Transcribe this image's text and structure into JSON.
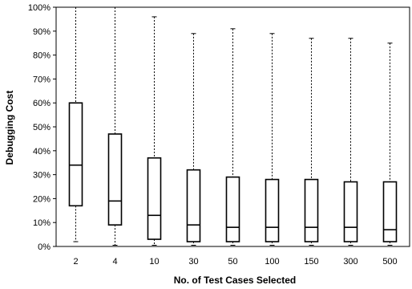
{
  "chart_data": {
    "type": "box",
    "title": "",
    "xlabel": "No. of Test Cases Selected",
    "ylabel": "Debugging Cost",
    "categories": [
      "2",
      "4",
      "10",
      "30",
      "50",
      "100",
      "150",
      "300",
      "500"
    ],
    "ylim": [
      0,
      100
    ],
    "ytick_labels": [
      "0%",
      "10%",
      "20%",
      "30%",
      "40%",
      "50%",
      "60%",
      "70%",
      "80%",
      "90%",
      "100%"
    ],
    "grid": false,
    "boxes": [
      {
        "category": "2",
        "min": 2,
        "q1": 17,
        "median": 34,
        "q3": 60,
        "max": 100
      },
      {
        "category": "4",
        "min": 0.5,
        "q1": 9,
        "median": 19,
        "q3": 47,
        "max": 100
      },
      {
        "category": "10",
        "min": 0.5,
        "q1": 3,
        "median": 13,
        "q3": 37,
        "max": 96
      },
      {
        "category": "30",
        "min": 0.5,
        "q1": 2,
        "median": 9,
        "q3": 32,
        "max": 89
      },
      {
        "category": "50",
        "min": 0.5,
        "q1": 2,
        "median": 8,
        "q3": 29,
        "max": 91
      },
      {
        "category": "100",
        "min": 0.5,
        "q1": 2,
        "median": 8,
        "q3": 28,
        "max": 89
      },
      {
        "category": "150",
        "min": 0.5,
        "q1": 2,
        "median": 8,
        "q3": 28,
        "max": 87
      },
      {
        "category": "300",
        "min": 0.5,
        "q1": 2,
        "median": 8,
        "q3": 27,
        "max": 87
      },
      {
        "category": "500",
        "min": 0.5,
        "q1": 2,
        "median": 7,
        "q3": 27,
        "max": 85
      }
    ]
  }
}
